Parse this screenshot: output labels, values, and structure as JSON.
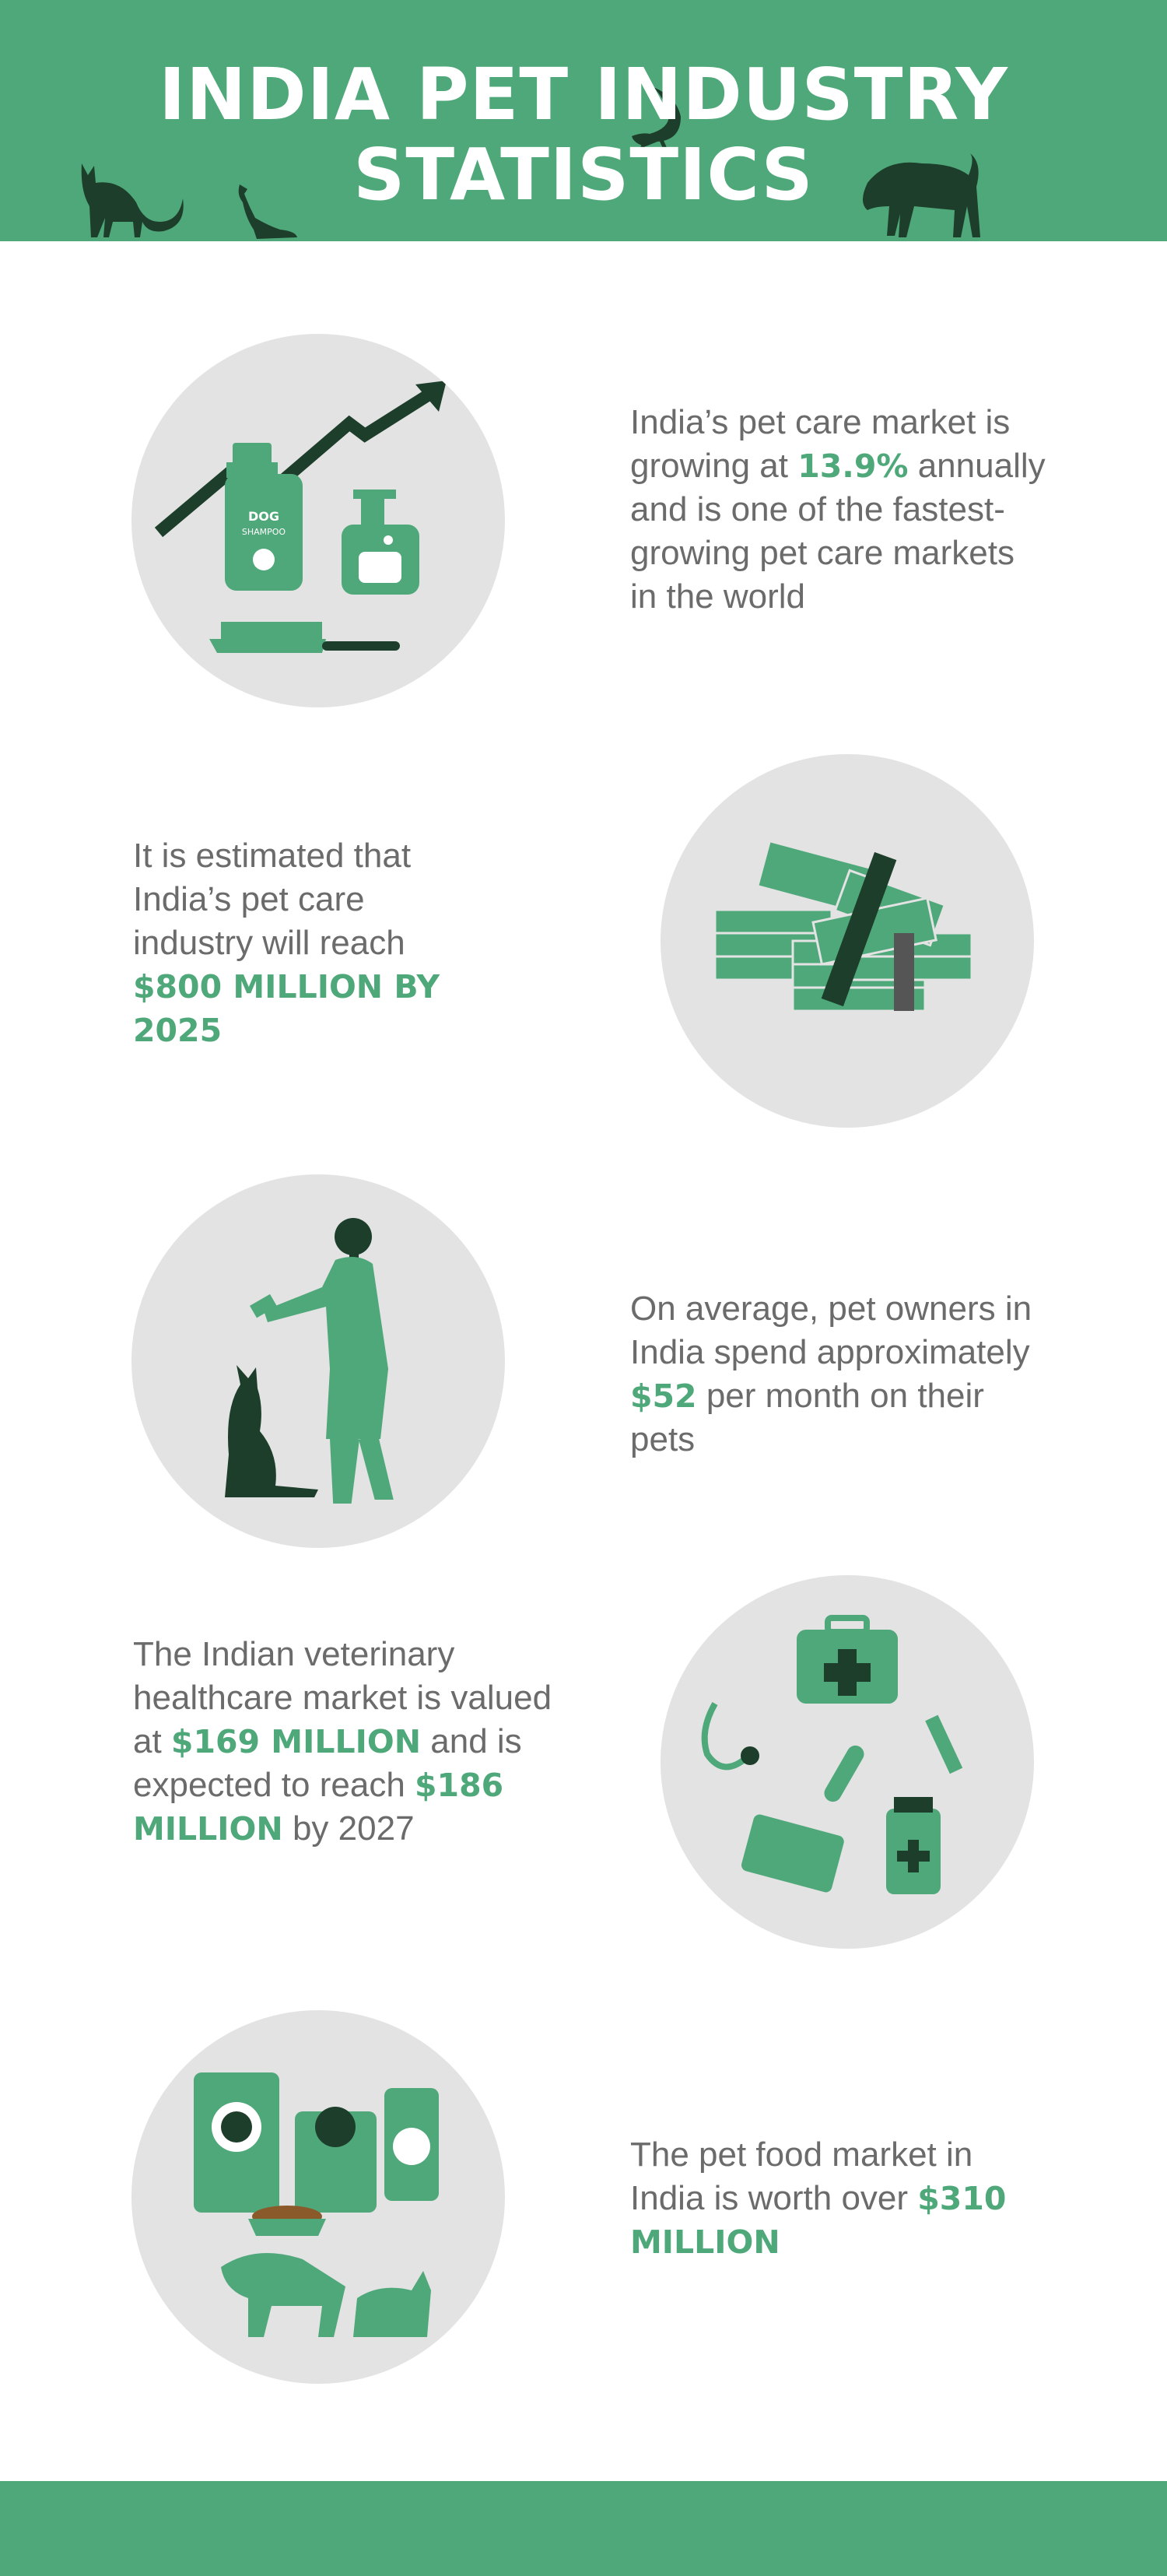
{
  "header": {
    "title_line1": "INDIA PET INDUSTRY",
    "title_line2": "STATISTICS",
    "animals": [
      "cat-silhouette",
      "cockatoo-silhouette",
      "lizard-silhouette",
      "dog-silhouette"
    ]
  },
  "colors": {
    "green": "#4fa87a",
    "dark_green": "#1d3e2b",
    "circle_gray": "#e3e3e3",
    "text_gray": "#6b6b6b"
  },
  "stats": [
    {
      "illustration": "pet-shampoo-growth-icon",
      "segments": [
        {
          "t": "India’s pet care market is growing at "
        },
        {
          "t": "13.9%",
          "em": true
        },
        {
          "t": " annually and is one of the fastest-growing pet care markets in the world"
        }
      ],
      "shampoo_label_1": "DOG",
      "shampoo_label_2": "SHAMPOO"
    },
    {
      "illustration": "money-stacks-icon",
      "segments": [
        {
          "t": "It is estimated that India’s pet care industry will reach "
        },
        {
          "t": "$800 MILLION BY 2025",
          "em": true
        }
      ]
    },
    {
      "illustration": "woman-with-dog-icon",
      "segments": [
        {
          "t": "On average, pet owners in India spend approximately "
        },
        {
          "t": "$52",
          "em": true
        },
        {
          "t": " per month on their pets"
        }
      ]
    },
    {
      "illustration": "veterinary-supplies-icon",
      "segments": [
        {
          "t": "The Indian veterinary healthcare market is valued at "
        },
        {
          "t": "$169 MILLION",
          "em": true
        },
        {
          "t": " and is expected to reach "
        },
        {
          "t": "$186 MILLION",
          "em": true
        },
        {
          "t": " by 2027"
        }
      ]
    },
    {
      "illustration": "pet-food-icon",
      "segments": [
        {
          "t": "The pet food market in India is worth over "
        },
        {
          "t": "$310 MILLION",
          "em": true
        }
      ]
    }
  ]
}
